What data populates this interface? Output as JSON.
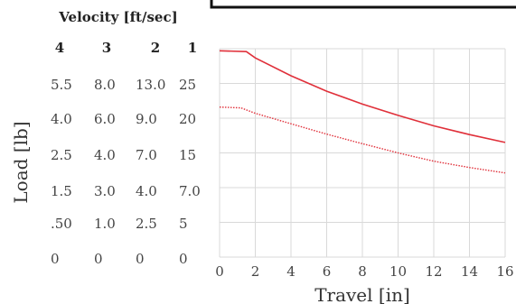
{
  "chart_data": {
    "type": "line",
    "title": "",
    "xlabel": "Travel [in]",
    "ylabel": "Load [lb]",
    "xlim": [
      0,
      16
    ],
    "ylim": [
      0,
      5
    ],
    "grid": true,
    "x_ticks": [
      "0",
      "2",
      "4",
      "6",
      "8",
      "10",
      "12",
      "14",
      "16"
    ],
    "velocity_table": {
      "title": "Velocity [ft/sec]",
      "column_headers": [
        "4",
        "3",
        "2",
        "1"
      ],
      "rows": [
        [
          "5.5",
          "8.0",
          "13.0",
          "25"
        ],
        [
          "4.0",
          "6.0",
          "9.0",
          "20"
        ],
        [
          "2.5",
          "4.0",
          "7.0",
          "15"
        ],
        [
          "1.5",
          "3.0",
          "4.0",
          "7.0"
        ],
        [
          ".50",
          "1.0",
          "2.5",
          "5"
        ],
        [
          "0",
          "0",
          "0",
          "0"
        ]
      ]
    },
    "series": [
      {
        "style": "solid",
        "color": "#e0303a",
        "x": [
          0,
          1.5,
          2,
          4,
          6,
          8,
          10,
          12,
          14,
          16
        ],
        "y": [
          4.95,
          4.93,
          4.78,
          4.35,
          3.98,
          3.67,
          3.4,
          3.15,
          2.94,
          2.75
        ]
      },
      {
        "style": "dotted",
        "color": "#e0303a",
        "x": [
          0,
          1.2,
          2,
          4,
          6,
          8,
          10,
          12,
          14,
          16
        ],
        "y": [
          3.6,
          3.58,
          3.45,
          3.2,
          2.95,
          2.72,
          2.5,
          2.3,
          2.15,
          2.02
        ]
      }
    ]
  }
}
